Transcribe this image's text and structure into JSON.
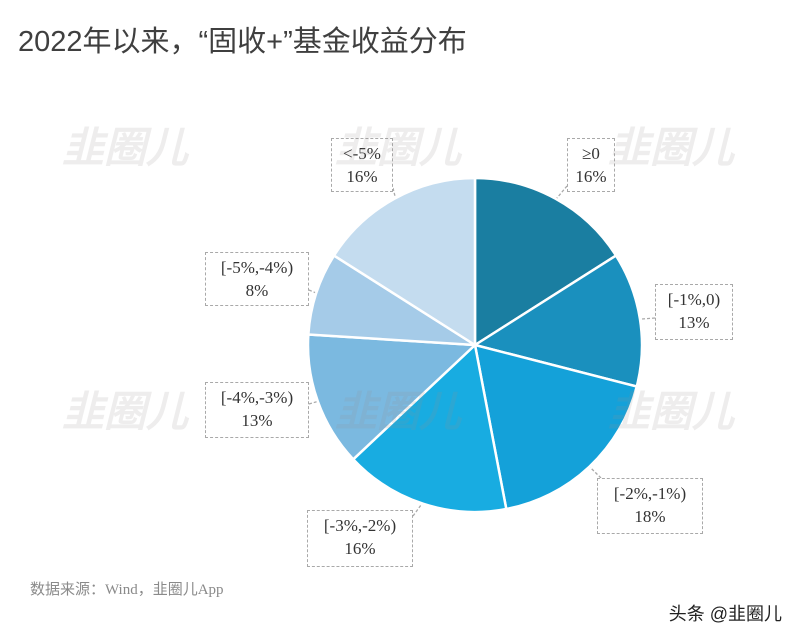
{
  "source": "数据来源：Wind，韭圈儿App",
  "attribution": "头条 @韭圈儿",
  "watermark": {
    "text": "韭圈儿"
  },
  "chart_data": {
    "type": "pie",
    "title": "2022年以来，“固收+”基金收益分布",
    "categories": [
      "≥0",
      "[-1%,0)",
      "[-2%,-1%)",
      "[-3%,-2%)",
      "[-4%,-3%)",
      "[-5%,-4%)",
      "<-5%"
    ],
    "values": [
      16,
      13,
      18,
      16,
      13,
      8,
      16
    ],
    "data_labels": [
      "16%",
      "13%",
      "18%",
      "16%",
      "13%",
      "8%",
      "16%"
    ],
    "colors": [
      "#1a7ea1",
      "#1a90be",
      "#14a1d9",
      "#18ace1",
      "#7bb9e0",
      "#a5cbe8",
      "#c4dcef"
    ],
    "legend": "none"
  }
}
